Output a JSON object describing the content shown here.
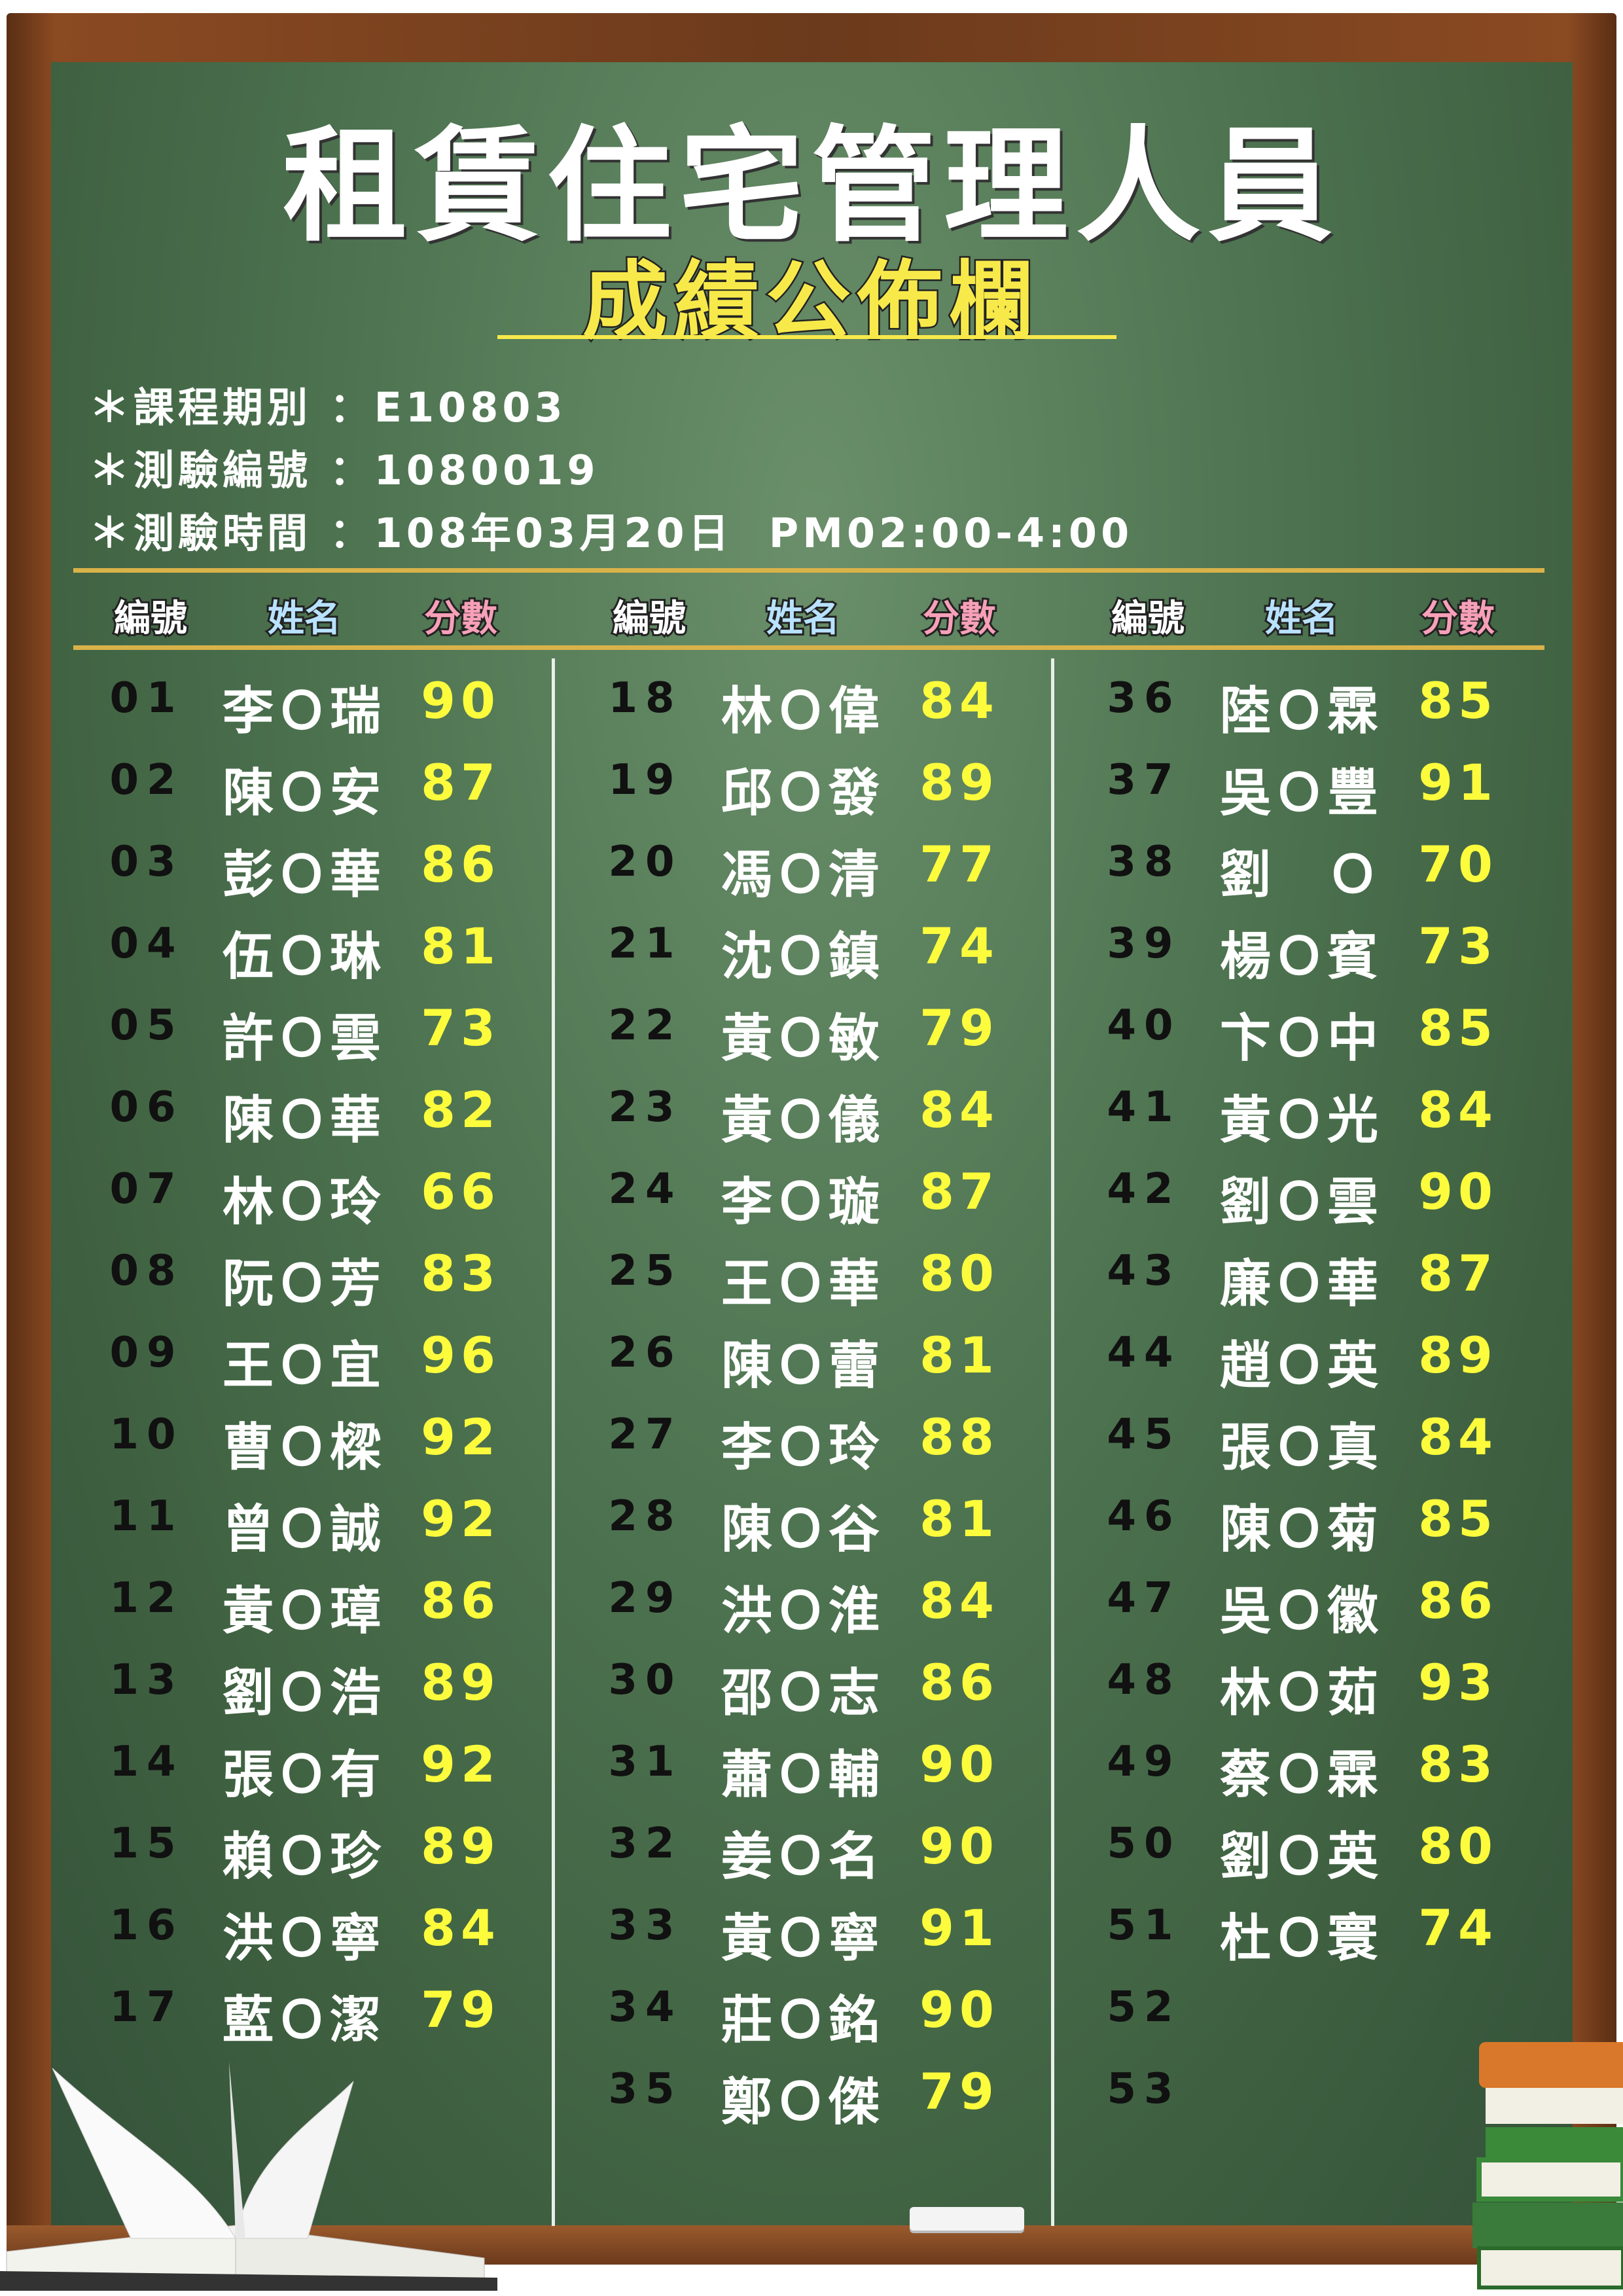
{
  "title": "租賃住宅管理人員",
  "subtitle": "成績公佈欄",
  "info": [
    {
      "label": "＊課程期別",
      "sep": "：",
      "value": "E10803"
    },
    {
      "label": "＊測驗編號",
      "sep": "：",
      "value": "1080019"
    },
    {
      "label": "＊測驗時間",
      "sep": "：",
      "value": "108年03月20日  PM02:00-4:00"
    }
  ],
  "headers": {
    "no": "編號",
    "name": "姓名",
    "score": "分數"
  },
  "colors": {
    "board": "#4f7552",
    "frame": "#6b3a1c",
    "score": "#fdfc3c",
    "number": "#111111",
    "name": "#ffffff",
    "gold_rule": "#d9b24a"
  },
  "columns": [
    [
      {
        "no": "01",
        "name": "李Ｏ瑞",
        "score": "90"
      },
      {
        "no": "02",
        "name": "陳Ｏ安",
        "score": "87"
      },
      {
        "no": "03",
        "name": "彭Ｏ華",
        "score": "86"
      },
      {
        "no": "04",
        "name": "伍Ｏ琳",
        "score": "81"
      },
      {
        "no": "05",
        "name": "許Ｏ雲",
        "score": "73"
      },
      {
        "no": "06",
        "name": "陳Ｏ華",
        "score": "82"
      },
      {
        "no": "07",
        "name": "林Ｏ玲",
        "score": "66"
      },
      {
        "no": "08",
        "name": "阮Ｏ芳",
        "score": "83"
      },
      {
        "no": "09",
        "name": "王Ｏ宜",
        "score": "96"
      },
      {
        "no": "10",
        "name": "曹Ｏ樑",
        "score": "92"
      },
      {
        "no": "11",
        "name": "曾Ｏ誠",
        "score": "92"
      },
      {
        "no": "12",
        "name": "黃Ｏ璋",
        "score": "86"
      },
      {
        "no": "13",
        "name": "劉Ｏ浩",
        "score": "89"
      },
      {
        "no": "14",
        "name": "張Ｏ有",
        "score": "92"
      },
      {
        "no": "15",
        "name": "賴Ｏ珍",
        "score": "89"
      },
      {
        "no": "16",
        "name": "洪Ｏ寧",
        "score": "84"
      },
      {
        "no": "17",
        "name": "藍Ｏ潔",
        "score": "79"
      }
    ],
    [
      {
        "no": "18",
        "name": "林Ｏ偉",
        "score": "84"
      },
      {
        "no": "19",
        "name": "邱Ｏ發",
        "score": "89"
      },
      {
        "no": "20",
        "name": "馮Ｏ清",
        "score": "77"
      },
      {
        "no": "21",
        "name": "沈Ｏ鎮",
        "score": "74"
      },
      {
        "no": "22",
        "name": "黃Ｏ敏",
        "score": "79"
      },
      {
        "no": "23",
        "name": "黃Ｏ儀",
        "score": "84"
      },
      {
        "no": "24",
        "name": "李Ｏ璇",
        "score": "87"
      },
      {
        "no": "25",
        "name": "王Ｏ華",
        "score": "80"
      },
      {
        "no": "26",
        "name": "陳Ｏ蕾",
        "score": "81"
      },
      {
        "no": "27",
        "name": "李Ｏ玲",
        "score": "88"
      },
      {
        "no": "28",
        "name": "陳Ｏ谷",
        "score": "81"
      },
      {
        "no": "29",
        "name": "洪Ｏ淮",
        "score": "84"
      },
      {
        "no": "30",
        "name": "邵Ｏ志",
        "score": "86"
      },
      {
        "no": "31",
        "name": "蕭Ｏ輔",
        "score": "90"
      },
      {
        "no": "32",
        "name": "姜Ｏ名",
        "score": "90"
      },
      {
        "no": "33",
        "name": "黃Ｏ寧",
        "score": "91"
      },
      {
        "no": "34",
        "name": "莊Ｏ銘",
        "score": "90"
      },
      {
        "no": "35",
        "name": "鄭Ｏ傑",
        "score": "79"
      }
    ],
    [
      {
        "no": "36",
        "name": "陸Ｏ霖",
        "score": "85"
      },
      {
        "no": "37",
        "name": "吳Ｏ豐",
        "score": "91"
      },
      {
        "no": "38",
        "name": "劉　Ｏ",
        "score": "70"
      },
      {
        "no": "39",
        "name": "楊Ｏ賓",
        "score": "73"
      },
      {
        "no": "40",
        "name": "卞Ｏ中",
        "score": "85"
      },
      {
        "no": "41",
        "name": "黃Ｏ光",
        "score": "84"
      },
      {
        "no": "42",
        "name": "劉Ｏ雲",
        "score": "90"
      },
      {
        "no": "43",
        "name": "廉Ｏ華",
        "score": "87"
      },
      {
        "no": "44",
        "name": "趙Ｏ英",
        "score": "89"
      },
      {
        "no": "45",
        "name": "張Ｏ真",
        "score": "84"
      },
      {
        "no": "46",
        "name": "陳Ｏ菊",
        "score": "85"
      },
      {
        "no": "47",
        "name": "吳Ｏ徽",
        "score": "86"
      },
      {
        "no": "48",
        "name": "林Ｏ茹",
        "score": "93"
      },
      {
        "no": "49",
        "name": "蔡Ｏ霖",
        "score": "83"
      },
      {
        "no": "50",
        "name": "劉Ｏ英",
        "score": "80"
      },
      {
        "no": "51",
        "name": "杜Ｏ寰",
        "score": "74"
      },
      {
        "no": "52",
        "name": "",
        "score": ""
      },
      {
        "no": "53",
        "name": "",
        "score": ""
      }
    ]
  ]
}
